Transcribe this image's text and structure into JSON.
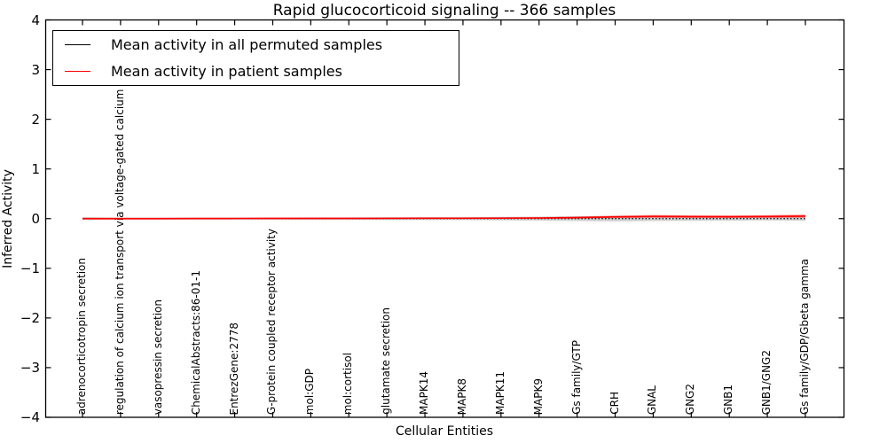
{
  "chart_data": {
    "type": "line",
    "title": "Rapid glucocorticoid signaling -- 366 samples",
    "xlabel": "Cellular Entities",
    "ylabel": "Inferred Activity",
    "ylim": [
      -4,
      4
    ],
    "yticks": [
      -4,
      -3,
      -2,
      -1,
      0,
      1,
      2,
      3,
      4
    ],
    "ytick_labels": [
      "−4",
      "−3",
      "−2",
      "−1",
      "0",
      "1",
      "2",
      "3",
      "4"
    ],
    "grid": false,
    "legend_position": "upper left",
    "categories": [
      "adrenocorticotropin secretion",
      "regulation of calcium ion transport via voltage-gated calcium channels",
      "vasopressin secretion",
      "ChemicalAbstracts:86-01-1",
      "EntrezGene:2778",
      "G-protein coupled receptor activity",
      "mol:GDP",
      "mol:cortisol",
      "glutamate secretion",
      "MAPK14",
      "MAPK8",
      "MAPK11",
      "MAPK9",
      "Gs family/GTP",
      "CRH",
      "GNAL",
      "GNG2",
      "GNB1",
      "GNB1/GNG2",
      "Gs family/GDP/Gbeta gamma"
    ],
    "series": [
      {
        "name": "Mean activity in all permuted samples",
        "color": "#000000",
        "line_style": "dotted",
        "band_color": "rgba(100,100,100,0.30)",
        "values": [
          0,
          0,
          0,
          0,
          0,
          0,
          0,
          0,
          0,
          0,
          0,
          0,
          0,
          0,
          0,
          0,
          0,
          0,
          0,
          0
        ],
        "band_halfwidth": [
          0.03,
          0.02,
          0.02,
          0.02,
          0.02,
          0.02,
          0.025,
          0.025,
          0.03,
          0.03,
          0.03,
          0.035,
          0.04,
          0.05,
          0.055,
          0.05,
          0.045,
          0.04,
          0.035,
          0.045
        ]
      },
      {
        "name": "Mean activity in patient samples",
        "color": "#ff0000",
        "line_style": "solid",
        "band_color": "rgba(255,0,0,0.30)",
        "values": [
          0.0,
          0.0,
          0.0,
          0.002,
          0.003,
          0.004,
          0.005,
          0.005,
          0.006,
          0.008,
          0.008,
          0.01,
          0.012,
          0.02,
          0.035,
          0.045,
          0.04,
          0.038,
          0.042,
          0.05
        ],
        "band_halfwidth": [
          0.012,
          0.008,
          0.008,
          0.008,
          0.008,
          0.008,
          0.008,
          0.008,
          0.008,
          0.01,
          0.01,
          0.012,
          0.015,
          0.02,
          0.028,
          0.03,
          0.028,
          0.026,
          0.03,
          0.035
        ]
      }
    ]
  }
}
